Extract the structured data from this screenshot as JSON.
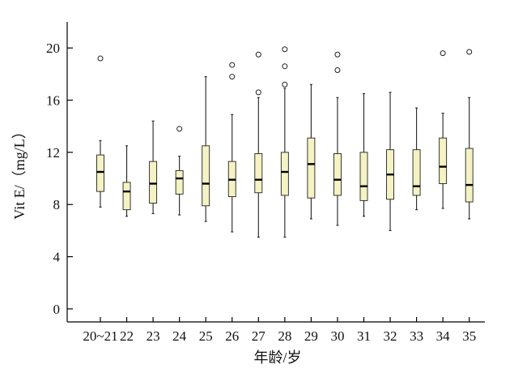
{
  "chart_data": {
    "type": "boxplot",
    "title": "",
    "xlabel": "年龄/岁",
    "ylabel": "Vit E/（mg/L）",
    "ylim": [
      -1,
      22
    ],
    "yticks": [
      0,
      4,
      8,
      12,
      16,
      20
    ],
    "categories": [
      "20~21",
      "22",
      "23",
      "24",
      "25",
      "26",
      "27",
      "28",
      "29",
      "30",
      "31",
      "32",
      "33",
      "34",
      "35"
    ],
    "boxes": [
      {
        "category": "20~21",
        "min": 7.8,
        "q1": 9.0,
        "median": 10.5,
        "q3": 11.8,
        "max": 12.9,
        "outliers": [
          19.2
        ]
      },
      {
        "category": "22",
        "min": 7.1,
        "q1": 7.6,
        "median": 9.0,
        "q3": 9.7,
        "max": 12.5,
        "outliers": []
      },
      {
        "category": "23",
        "min": 7.3,
        "q1": 8.1,
        "median": 9.6,
        "q3": 11.3,
        "max": 14.4,
        "outliers": []
      },
      {
        "category": "24",
        "min": 7.2,
        "q1": 8.8,
        "median": 10.0,
        "q3": 10.6,
        "max": 11.7,
        "outliers": [
          13.8
        ]
      },
      {
        "category": "25",
        "min": 6.7,
        "q1": 7.9,
        "median": 9.6,
        "q3": 12.5,
        "max": 17.8,
        "outliers": []
      },
      {
        "category": "26",
        "min": 5.9,
        "q1": 8.6,
        "median": 9.9,
        "q3": 11.3,
        "max": 14.9,
        "outliers": [
          17.8,
          18.7
        ]
      },
      {
        "category": "27",
        "min": 5.5,
        "q1": 8.9,
        "median": 9.9,
        "q3": 11.9,
        "max": 16.2,
        "outliers": [
          16.6,
          19.5
        ]
      },
      {
        "category": "28",
        "min": 5.5,
        "q1": 8.7,
        "median": 10.5,
        "q3": 12.0,
        "max": 16.9,
        "outliers": [
          17.2,
          18.6,
          19.9
        ]
      },
      {
        "category": "29",
        "min": 6.9,
        "q1": 8.5,
        "median": 11.1,
        "q3": 13.1,
        "max": 17.2,
        "outliers": []
      },
      {
        "category": "30",
        "min": 6.4,
        "q1": 8.7,
        "median": 9.9,
        "q3": 11.9,
        "max": 16.2,
        "outliers": [
          18.3,
          19.5
        ]
      },
      {
        "category": "31",
        "min": 7.1,
        "q1": 8.3,
        "median": 9.4,
        "q3": 12.0,
        "max": 16.5,
        "outliers": []
      },
      {
        "category": "32",
        "min": 6.0,
        "q1": 8.4,
        "median": 10.3,
        "q3": 12.2,
        "max": 16.6,
        "outliers": []
      },
      {
        "category": "33",
        "min": 7.6,
        "q1": 8.7,
        "median": 9.4,
        "q3": 12.2,
        "max": 15.4,
        "outliers": []
      },
      {
        "category": "34",
        "min": 7.7,
        "q1": 9.6,
        "median": 10.9,
        "q3": 13.1,
        "max": 15.0,
        "outliers": [
          19.6
        ]
      },
      {
        "category": "35",
        "min": 6.9,
        "q1": 8.2,
        "median": 9.5,
        "q3": 12.3,
        "max": 16.2,
        "outliers": [
          19.7
        ]
      }
    ],
    "colors": {
      "box_fill": "#f5f2c3",
      "box_stroke": "#222222",
      "axis": "#000000"
    }
  }
}
